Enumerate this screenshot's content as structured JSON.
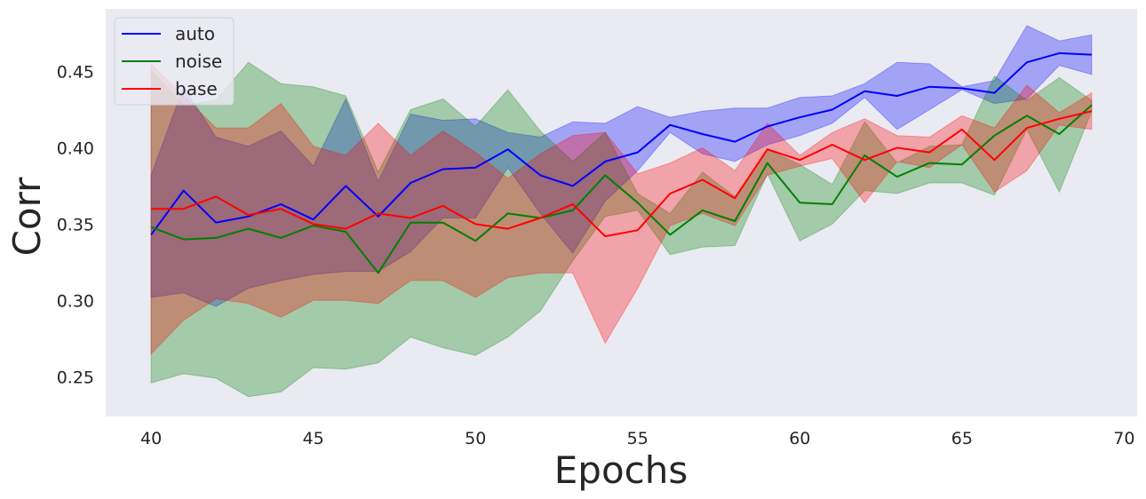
{
  "chart_data": {
    "type": "line",
    "title": "",
    "xlabel": "Epochs",
    "ylabel": "Corr",
    "xlim": [
      38.6,
      70.4
    ],
    "ylim": [
      0.224,
      0.491
    ],
    "xticks": [
      40,
      45,
      50,
      55,
      60,
      65,
      70
    ],
    "yticks": [
      0.25,
      0.3,
      0.35,
      0.4,
      0.45
    ],
    "ytick_labels": [
      "0.25",
      "0.30",
      "0.35",
      "0.40",
      "0.45"
    ],
    "grid": false,
    "legend": "top-left",
    "x": [
      40,
      41,
      42,
      43,
      44,
      45,
      46,
      47,
      48,
      49,
      50,
      51,
      52,
      53,
      54,
      55,
      56,
      57,
      58,
      59,
      60,
      61,
      62,
      63,
      64,
      65,
      66,
      67,
      68,
      69
    ],
    "series": [
      {
        "name": "auto",
        "color": "#0000ff",
        "values": [
          0.343,
          0.372,
          0.351,
          0.355,
          0.363,
          0.353,
          0.375,
          0.355,
          0.377,
          0.386,
          0.387,
          0.399,
          0.382,
          0.375,
          0.391,
          0.397,
          0.415,
          0.409,
          0.404,
          0.414,
          0.42,
          0.425,
          0.437,
          0.434,
          0.44,
          0.439,
          0.436,
          0.456,
          0.462,
          0.461
        ],
        "upper": [
          0.382,
          0.44,
          0.407,
          0.401,
          0.411,
          0.388,
          0.432,
          0.378,
          0.422,
          0.418,
          0.419,
          0.41,
          0.407,
          0.417,
          0.416,
          0.427,
          0.42,
          0.424,
          0.426,
          0.426,
          0.433,
          0.434,
          0.442,
          0.456,
          0.455,
          0.44,
          0.444,
          0.48,
          0.47,
          0.474
        ],
        "lower": [
          0.302,
          0.305,
          0.296,
          0.308,
          0.313,
          0.317,
          0.319,
          0.319,
          0.332,
          0.354,
          0.354,
          0.387,
          0.357,
          0.331,
          0.365,
          0.385,
          0.41,
          0.396,
          0.391,
          0.402,
          0.408,
          0.416,
          0.433,
          0.412,
          0.425,
          0.438,
          0.429,
          0.432,
          0.454,
          0.448
        ]
      },
      {
        "name": "noise",
        "color": "#008000",
        "values": [
          0.348,
          0.34,
          0.341,
          0.347,
          0.341,
          0.349,
          0.345,
          0.318,
          0.351,
          0.351,
          0.339,
          0.357,
          0.354,
          0.359,
          0.382,
          0.364,
          0.343,
          0.359,
          0.352,
          0.39,
          0.364,
          0.363,
          0.395,
          0.381,
          0.39,
          0.389,
          0.408,
          0.421,
          0.409,
          0.428
        ],
        "upper": [
          0.451,
          0.428,
          0.431,
          0.456,
          0.442,
          0.44,
          0.434,
          0.384,
          0.425,
          0.432,
          0.414,
          0.438,
          0.411,
          0.391,
          0.41,
          0.37,
          0.357,
          0.384,
          0.368,
          0.399,
          0.389,
          0.376,
          0.417,
          0.39,
          0.401,
          0.402,
          0.447,
          0.431,
          0.446,
          0.431
        ],
        "lower": [
          0.246,
          0.252,
          0.249,
          0.237,
          0.24,
          0.256,
          0.255,
          0.259,
          0.276,
          0.269,
          0.264,
          0.276,
          0.293,
          0.326,
          0.355,
          0.359,
          0.33,
          0.335,
          0.336,
          0.383,
          0.339,
          0.35,
          0.372,
          0.37,
          0.377,
          0.377,
          0.369,
          0.412,
          0.371,
          0.424
        ]
      },
      {
        "name": "base",
        "color": "#ff0000",
        "values": [
          0.36,
          0.36,
          0.368,
          0.356,
          0.36,
          0.35,
          0.347,
          0.357,
          0.354,
          0.362,
          0.35,
          0.347,
          0.354,
          0.363,
          0.342,
          0.346,
          0.37,
          0.379,
          0.367,
          0.399,
          0.392,
          0.402,
          0.392,
          0.4,
          0.397,
          0.412,
          0.392,
          0.413,
          0.419,
          0.424
        ],
        "upper": [
          0.455,
          0.434,
          0.413,
          0.413,
          0.429,
          0.401,
          0.395,
          0.416,
          0.395,
          0.411,
          0.397,
          0.38,
          0.396,
          0.408,
          0.41,
          0.383,
          0.39,
          0.4,
          0.385,
          0.416,
          0.395,
          0.41,
          0.419,
          0.408,
          0.407,
          0.421,
          0.413,
          0.441,
          0.423,
          0.436
        ],
        "lower": [
          0.265,
          0.287,
          0.301,
          0.298,
          0.289,
          0.3,
          0.3,
          0.298,
          0.313,
          0.313,
          0.302,
          0.315,
          0.318,
          0.318,
          0.272,
          0.308,
          0.349,
          0.357,
          0.349,
          0.382,
          0.388,
          0.393,
          0.364,
          0.391,
          0.387,
          0.402,
          0.371,
          0.385,
          0.415,
          0.412
        ]
      }
    ]
  }
}
